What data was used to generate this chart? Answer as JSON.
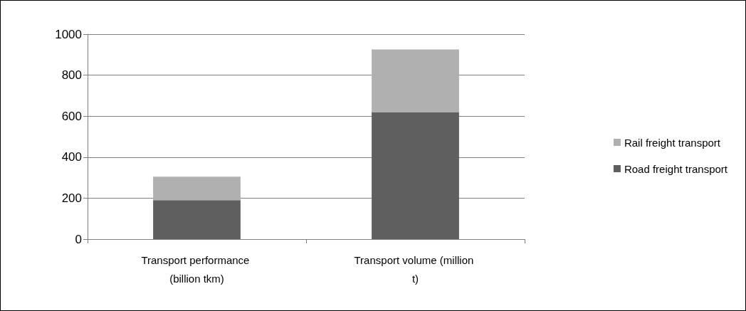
{
  "chart_data": {
    "type": "bar",
    "stacked": true,
    "categories": [
      "Transport performance (billion tkm)",
      "Transport volume (million t)"
    ],
    "series": [
      {
        "name": "Road freight transport",
        "color": "#5f5f5f",
        "values": [
          190,
          620
        ]
      },
      {
        "name": "Rail freight transport",
        "color": "#b0b0b0",
        "values": [
          115,
          305
        ]
      }
    ],
    "ylim": [
      0,
      1000
    ],
    "yticks": [
      0,
      200,
      400,
      600,
      800,
      1000
    ],
    "grid": "y",
    "legend": "right"
  }
}
